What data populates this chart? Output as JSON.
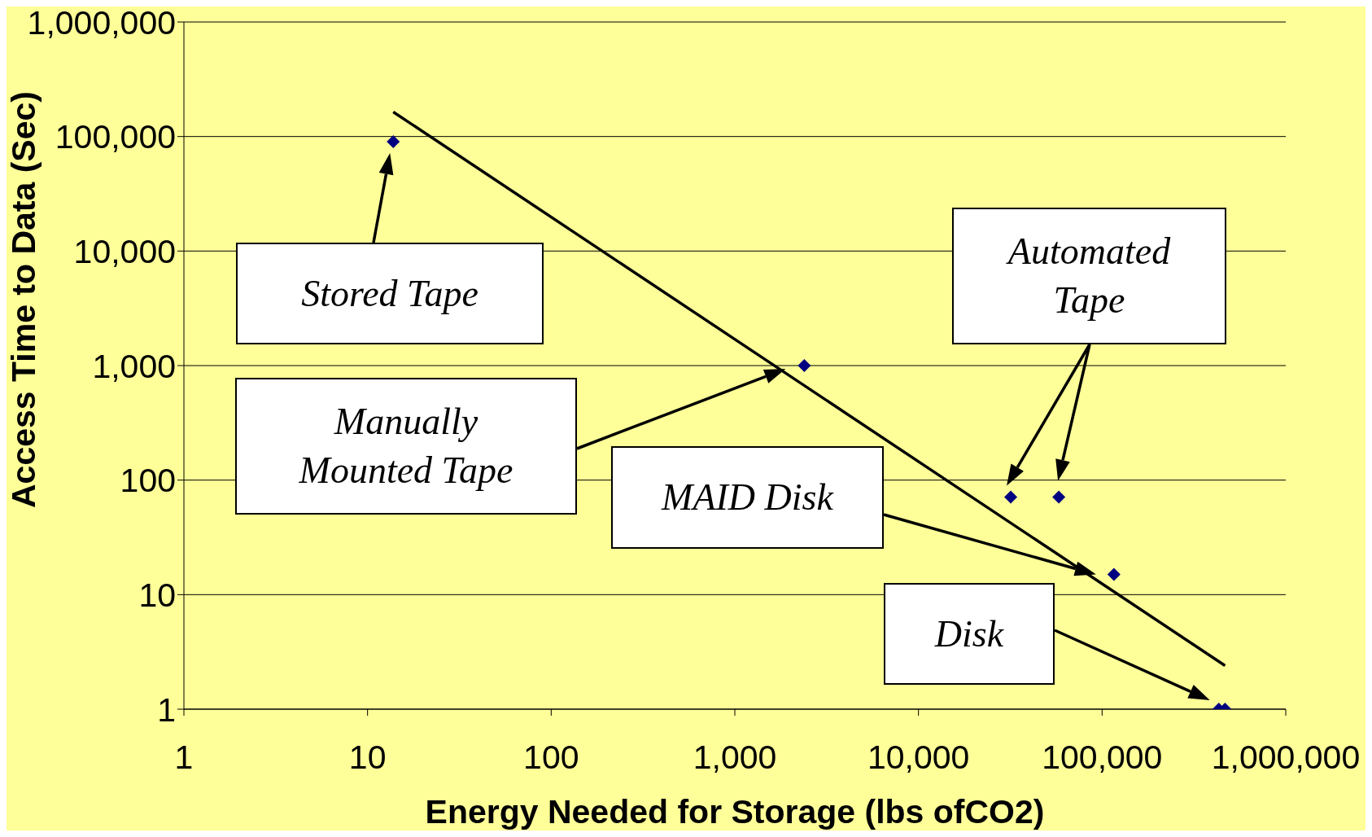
{
  "chart_data": {
    "type": "scatter",
    "xlabel": "Energy Needed for Storage (lbs ofCO2)",
    "ylabel": "Access Time to Data (Sec)",
    "log": "xy",
    "grid": "y",
    "legend": false,
    "marker": "diamond",
    "xlim": [
      1,
      1000000
    ],
    "ylim": [
      1,
      1000000
    ],
    "xticks": [
      {
        "value": 1,
        "label": "1"
      },
      {
        "value": 10,
        "label": "10"
      },
      {
        "value": 100,
        "label": "100"
      },
      {
        "value": 1000,
        "label": "1,000"
      },
      {
        "value": 10000,
        "label": "10,000"
      },
      {
        "value": 100000,
        "label": "100,000"
      },
      {
        "value": 1000000,
        "label": "1,000,000"
      }
    ],
    "yticks": [
      {
        "value": 1,
        "label": "1"
      },
      {
        "value": 10,
        "label": "10"
      },
      {
        "value": 100,
        "label": "100"
      },
      {
        "value": 1000,
        "label": "1,000"
      },
      {
        "value": 10000,
        "label": "10,000"
      },
      {
        "value": 100000,
        "label": "100,000"
      },
      {
        "value": 1000000,
        "label": "1,000,000"
      }
    ],
    "series": [
      {
        "color": "#000080",
        "x": [
          13.8,
          2390,
          31800,
          58100,
          116000,
          432000,
          467000
        ],
        "values": [
          90000,
          1000,
          71,
          71,
          15,
          1,
          1
        ]
      },
      {
        "type": "line",
        "color": "#000000",
        "marker": "none",
        "line_style": "solid",
        "x": [
          13.8,
          467000
        ],
        "values": [
          164000,
          2.4
        ]
      }
    ],
    "annotations": [
      "Stored Tape",
      "Manually Mounted Tape",
      "Automated Tape",
      "MAID Disk",
      "Disk"
    ]
  }
}
